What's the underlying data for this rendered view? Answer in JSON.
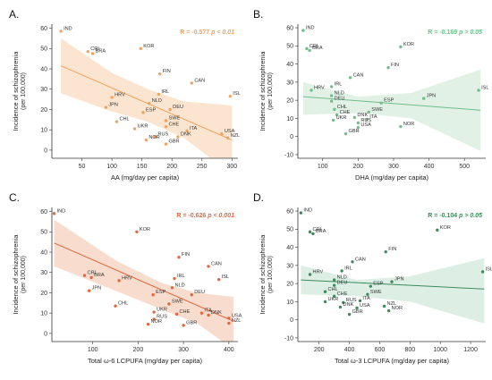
{
  "chart_data": [
    {
      "panel": "A.",
      "type": "scatter",
      "xlabel": "AA (mg/day per capita)",
      "ylabel": "Incidence of schizophrenia",
      "ylabel_sub": "(per 100,000)",
      "xlim": [
        0,
        310
      ],
      "ylim": [
        -4,
        62
      ],
      "xticks": [
        50,
        100,
        150,
        200,
        250,
        300
      ],
      "yticks": [
        0,
        10,
        20,
        30,
        40,
        50,
        60
      ],
      "stat_r": "R = -0.577",
      "stat_p": "p < 0.01",
      "color": "#f0a35e",
      "band_color": "#fbe1c8",
      "points": [
        {
          "label": "IND",
          "x": 15,
          "y": 58.5
        },
        {
          "label": "CRI",
          "x": 60,
          "y": 48.5
        },
        {
          "label": "BRA",
          "x": 68,
          "y": 47.5
        },
        {
          "label": "KOR",
          "x": 148,
          "y": 50
        },
        {
          "label": "FIN",
          "x": 180,
          "y": 37.5
        },
        {
          "label": "CAN",
          "x": 233,
          "y": 33
        },
        {
          "label": "IRL",
          "x": 178,
          "y": 27.5
        },
        {
          "label": "HRV",
          "x": 100,
          "y": 26
        },
        {
          "label": "ISL",
          "x": 297,
          "y": 26.5
        },
        {
          "label": "NLD",
          "x": 162,
          "y": 23
        },
        {
          "label": "DEU",
          "x": 197,
          "y": 20
        },
        {
          "label": "JPN",
          "x": 90,
          "y": 21
        },
        {
          "label": "ESP",
          "x": 152,
          "y": 18.5
        },
        {
          "label": "CHL",
          "x": 108,
          "y": 14
        },
        {
          "label": "SWE",
          "x": 190,
          "y": 14.5
        },
        {
          "label": "CHE",
          "x": 190,
          "y": 11.5
        },
        {
          "label": "UKR",
          "x": 138,
          "y": 10.5
        },
        {
          "label": "ITA",
          "x": 225,
          "y": 9.5
        },
        {
          "label": "USA",
          "x": 283,
          "y": 8
        },
        {
          "label": "RUS",
          "x": 172,
          "y": 6.5
        },
        {
          "label": "DNK",
          "x": 210,
          "y": 6.5
        },
        {
          "label": "NZL",
          "x": 293,
          "y": 6
        },
        {
          "label": "NOR",
          "x": 157,
          "y": 5
        },
        {
          "label": "GBR",
          "x": 190,
          "y": 3
        }
      ],
      "fit": {
        "x0": 15,
        "y0": 41.5,
        "x1": 300,
        "y1": 5
      },
      "band_upper": [
        [
          15,
          55
        ],
        [
          100,
          38
        ],
        [
          160,
          30
        ],
        [
          220,
          24
        ],
        [
          300,
          22
        ]
      ],
      "band_lower": [
        [
          15,
          28
        ],
        [
          100,
          19
        ],
        [
          160,
          14
        ],
        [
          220,
          6
        ],
        [
          300,
          -12
        ]
      ]
    },
    {
      "panel": "B.",
      "type": "scatter",
      "xlabel": "DHA (mg/day per capita)",
      "ylabel": "Incidence of schizophrenia",
      "ylabel_sub": "(per 100,000)",
      "xlim": [
        30,
        560
      ],
      "ylim": [
        -12,
        62
      ],
      "xticks": [
        100,
        200,
        300,
        400,
        500
      ],
      "yticks": [
        -10,
        0,
        10,
        20,
        30,
        40,
        50,
        60
      ],
      "stat_r": "R = -0.169",
      "stat_p": "p > 0.05",
      "color": "#6fbf8a",
      "band_color": "#dcefe2",
      "points": [
        {
          "label": "IND",
          "x": 45,
          "y": 58.5
        },
        {
          "label": "CRI",
          "x": 55,
          "y": 48.5
        },
        {
          "label": "BRA",
          "x": 63,
          "y": 47.5
        },
        {
          "label": "KOR",
          "x": 320,
          "y": 49.5
        },
        {
          "label": "FIN",
          "x": 285,
          "y": 38
        },
        {
          "label": "CAN",
          "x": 178,
          "y": 32.5
        },
        {
          "label": "IRL",
          "x": 125,
          "y": 27.5
        },
        {
          "label": "HRV",
          "x": 68,
          "y": 25.5
        },
        {
          "label": "ISL",
          "x": 540,
          "y": 25.5
        },
        {
          "label": "NLD",
          "x": 125,
          "y": 22.5
        },
        {
          "label": "DEU",
          "x": 125,
          "y": 19.5
        },
        {
          "label": "JPN",
          "x": 385,
          "y": 21
        },
        {
          "label": "ESP",
          "x": 265,
          "y": 18.5
        },
        {
          "label": "CHL",
          "x": 133,
          "y": 15
        },
        {
          "label": "CHE",
          "x": 140,
          "y": 12
        },
        {
          "label": "SWE",
          "x": 230,
          "y": 13.5
        },
        {
          "label": "UKR",
          "x": 130,
          "y": 9
        },
        {
          "label": "DNK",
          "x": 190,
          "y": 10.5
        },
        {
          "label": "ITA",
          "x": 225,
          "y": 9.5
        },
        {
          "label": "RUS",
          "x": 200,
          "y": 7.5
        },
        {
          "label": "USA",
          "x": 200,
          "y": 5
        },
        {
          "label": "NOR",
          "x": 320,
          "y": 5.5
        },
        {
          "label": "GBR",
          "x": 165,
          "y": 1.5
        }
      ],
      "fit": {
        "x0": 45,
        "y0": 22,
        "x1": 545,
        "y1": 14.5
      },
      "band_upper": [
        [
          45,
          30
        ],
        [
          200,
          22
        ],
        [
          350,
          24
        ],
        [
          545,
          37
        ]
      ],
      "band_lower": [
        [
          45,
          12
        ],
        [
          200,
          13
        ],
        [
          350,
          10
        ],
        [
          545,
          -8
        ]
      ]
    },
    {
      "panel": "C.",
      "type": "scatter",
      "xlabel": "Total ω-6 LCPUFA (mg/day per capita)",
      "ylabel": "Incidence of schizophrenia",
      "ylabel_sub": "(per 100,000)",
      "xlim": [
        10,
        420
      ],
      "ylim": [
        -4,
        62
      ],
      "xticks": [
        100,
        200,
        300,
        400
      ],
      "yticks": [
        0,
        10,
        20,
        30,
        40,
        50,
        60
      ],
      "stat_r": "R = -0.626",
      "stat_p": "p < 0.001",
      "color": "#e2683c",
      "band_color": "#f7d6c6",
      "points": [
        {
          "label": "IND",
          "x": 15,
          "y": 59
        },
        {
          "label": "CRI",
          "x": 82,
          "y": 28.5
        },
        {
          "label": "BRA",
          "x": 97,
          "y": 27.5
        },
        {
          "label": "KOR",
          "x": 197,
          "y": 50
        },
        {
          "label": "FIN",
          "x": 290,
          "y": 37.5
        },
        {
          "label": "CAN",
          "x": 355,
          "y": 33
        },
        {
          "label": "ISL",
          "x": 378,
          "y": 26.5
        },
        {
          "label": "HRV",
          "x": 158,
          "y": 26
        },
        {
          "label": "IRL",
          "x": 280,
          "y": 27
        },
        {
          "label": "JPN",
          "x": 92,
          "y": 21
        },
        {
          "label": "NLD",
          "x": 275,
          "y": 22.5
        },
        {
          "label": "ESP",
          "x": 233,
          "y": 19
        },
        {
          "label": "DEU",
          "x": 318,
          "y": 19
        },
        {
          "label": "CHL",
          "x": 150,
          "y": 13.5
        },
        {
          "label": "SWE",
          "x": 268,
          "y": 14.5
        },
        {
          "label": "UKR",
          "x": 235,
          "y": 10.5
        },
        {
          "label": "CHE",
          "x": 285,
          "y": 9.5
        },
        {
          "label": "ITA",
          "x": 340,
          "y": 10
        },
        {
          "label": "RUS",
          "x": 235,
          "y": 7
        },
        {
          "label": "DNK",
          "x": 355,
          "y": 9
        },
        {
          "label": "USA",
          "x": 400,
          "y": 7.5
        },
        {
          "label": "NOR",
          "x": 222,
          "y": 4.5
        },
        {
          "label": "NZL",
          "x": 400,
          "y": 5
        },
        {
          "label": "GBR",
          "x": 300,
          "y": 4
        }
      ],
      "fit": {
        "x0": 15,
        "y0": 44.5,
        "x1": 410,
        "y1": 6
      },
      "band_upper": [
        [
          15,
          56
        ],
        [
          150,
          36
        ],
        [
          250,
          25
        ],
        [
          330,
          20
        ],
        [
          410,
          18
        ]
      ],
      "band_lower": [
        [
          15,
          33
        ],
        [
          150,
          21
        ],
        [
          250,
          12
        ],
        [
          330,
          5
        ],
        [
          410,
          -8
        ]
      ]
    },
    {
      "panel": "D.",
      "type": "scatter",
      "xlabel": "Total ω-3 LCPUFA (mg/day per capita)",
      "ylabel": "Incidence of schizophrenia",
      "ylabel_sub": "(per 100,000)",
      "xlim": [
        60,
        1300
      ],
      "ylim": [
        -12,
        62
      ],
      "xticks": [
        200,
        400,
        600,
        800,
        1000,
        1200
      ],
      "yticks": [
        -10,
        0,
        10,
        20,
        30,
        40,
        50,
        60
      ],
      "stat_r": "R = -0.104",
      "stat_p": "p > 0.05",
      "color": "#3d8a5e",
      "band_color": "#d7ece0",
      "points": [
        {
          "label": "IND",
          "x": 80,
          "y": 59
        },
        {
          "label": "CRI",
          "x": 140,
          "y": 48.5
        },
        {
          "label": "BRA",
          "x": 160,
          "y": 47.5
        },
        {
          "label": "KOR",
          "x": 980,
          "y": 49.5
        },
        {
          "label": "FIN",
          "x": 640,
          "y": 37.5
        },
        {
          "label": "CAN",
          "x": 420,
          "y": 32
        },
        {
          "label": "IRL",
          "x": 350,
          "y": 27
        },
        {
          "label": "HRV",
          "x": 140,
          "y": 25
        },
        {
          "label": "ISL",
          "x": 1280,
          "y": 26.5
        },
        {
          "label": "NLD",
          "x": 300,
          "y": 22
        },
        {
          "label": "JPN",
          "x": 680,
          "y": 21
        },
        {
          "label": "DEU",
          "x": 300,
          "y": 19
        },
        {
          "label": "ESP",
          "x": 540,
          "y": 18.5
        },
        {
          "label": "CHL",
          "x": 240,
          "y": 15.5
        },
        {
          "label": "CHE",
          "x": 300,
          "y": 13
        },
        {
          "label": "SWE",
          "x": 520,
          "y": 14
        },
        {
          "label": "UKR",
          "x": 240,
          "y": 10
        },
        {
          "label": "RUS",
          "x": 360,
          "y": 9.5
        },
        {
          "label": "ITA",
          "x": 470,
          "y": 10.5
        },
        {
          "label": "DNK",
          "x": 340,
          "y": 7
        },
        {
          "label": "USA",
          "x": 450,
          "y": 6.5
        },
        {
          "label": "NZL",
          "x": 630,
          "y": 7.5
        },
        {
          "label": "NOR",
          "x": 660,
          "y": 5
        },
        {
          "label": "GBR",
          "x": 400,
          "y": 3
        }
      ],
      "fit": {
        "x0": 80,
        "y0": 22,
        "x1": 1290,
        "y1": 17
      },
      "band_upper": [
        [
          80,
          30
        ],
        [
          450,
          22
        ],
        [
          800,
          24
        ],
        [
          1290,
          34
        ]
      ],
      "band_lower": [
        [
          80,
          14
        ],
        [
          450,
          13
        ],
        [
          800,
          10
        ],
        [
          1290,
          -2
        ]
      ]
    }
  ]
}
